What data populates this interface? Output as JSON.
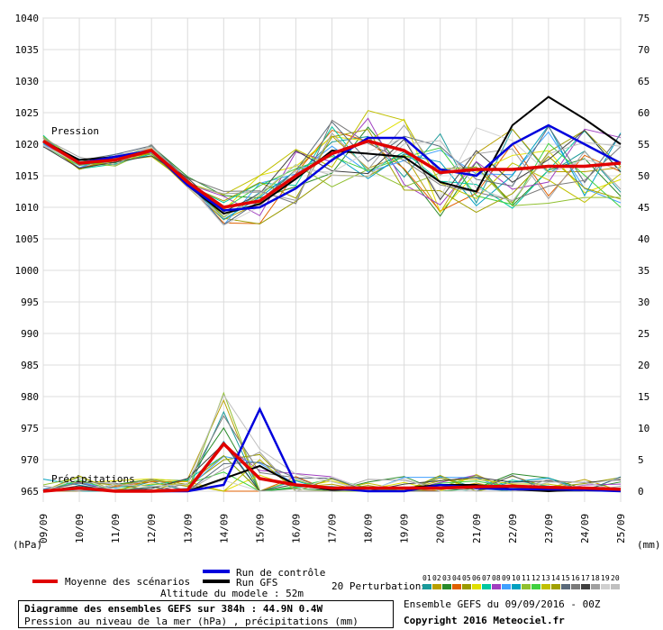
{
  "chart_data": {
    "type": "line",
    "xlabel": "",
    "dates": [
      "09/09",
      "10/09",
      "11/09",
      "12/09",
      "13/09",
      "14/09",
      "15/09",
      "16/09",
      "17/09",
      "18/09",
      "19/09",
      "20/09",
      "21/09",
      "22/09",
      "23/09",
      "24/09",
      "25/09"
    ],
    "left_axis": {
      "unit": "(hPa)",
      "ticks": [
        965,
        970,
        975,
        980,
        985,
        990,
        995,
        1000,
        1005,
        1010,
        1015,
        1020,
        1025,
        1030,
        1035,
        1040
      ]
    },
    "right_axis": {
      "unit": "(mm)",
      "ticks": [
        0,
        5,
        10,
        15,
        20,
        25,
        30,
        35,
        40,
        45,
        50,
        55,
        60,
        65,
        70,
        75
      ]
    },
    "grid": true,
    "panel_labels": {
      "pressure": "Pression",
      "precip": "Précipitations"
    },
    "legend": {
      "mean": "Moyenne des scénarios",
      "control": "Run de contrôle",
      "gfs": "Run GFS",
      "perturbations": "20 Perturbations",
      "perturbation_ids": [
        "01",
        "02",
        "03",
        "04",
        "05",
        "06",
        "07",
        "08",
        "09",
        "10",
        "11",
        "12",
        "13",
        "14",
        "15",
        "16",
        "17",
        "18",
        "19",
        "20"
      ],
      "perturbation_colors": [
        "#1a9a9a",
        "#b8a000",
        "#2a8a2a",
        "#e06000",
        "#9a9a00",
        "#e0e000",
        "#00c8a0",
        "#a040c0",
        "#40a0ff",
        "#00a0c0",
        "#90c030",
        "#40d040",
        "#c0c000",
        "#a0a000",
        "#5a6a7a",
        "#7a7a7a",
        "#404040",
        "#a0a0a0",
        "#d0d0d0",
        "#c0c0c0"
      ]
    },
    "altitude": "Altitude du modele : 52m",
    "pressure_series": [
      {
        "name": "Moyenne des scénarios",
        "color": "#e00000",
        "values": [
          1020.5,
          1017,
          1017.5,
          1019,
          1014,
          1010,
          1011,
          1015,
          1018.5,
          1020.5,
          1019,
          1015.5,
          1016,
          1016,
          1016.5,
          1016.5,
          1017
        ]
      },
      {
        "name": "Run de contrôle",
        "color": "#0000dd",
        "values": [
          1020.5,
          1017,
          1018,
          1019,
          1013.5,
          1009.5,
          1010,
          1013,
          1017.5,
          1021,
          1021,
          1016,
          1015,
          1020,
          1023,
          1020,
          1017
        ]
      },
      {
        "name": "Run GFS",
        "color": "#000000",
        "values": [
          1020.5,
          1017.5,
          1018,
          1019,
          1013.5,
          1009,
          1010.5,
          1014.5,
          1019,
          1018.5,
          1018,
          1014,
          1012.5,
          1023,
          1027.5,
          1024,
          1020
        ]
      }
    ],
    "precip_series": [
      {
        "name": "Moyenne des scénarios",
        "color": "#e00000",
        "values": [
          0,
          0.5,
          0,
          0,
          0.2,
          7.5,
          2,
          1,
          0.5,
          0.5,
          0.5,
          0.5,
          0.7,
          0.8,
          0.6,
          0.5,
          0.3
        ]
      },
      {
        "name": "Run de contrôle",
        "color": "#0000dd",
        "values": [
          0,
          0.5,
          0,
          0,
          0,
          1,
          13,
          1,
          0.5,
          0,
          0,
          1,
          0.5,
          0.3,
          0.3,
          0.2,
          0
        ]
      },
      {
        "name": "Run GFS",
        "color": "#000000",
        "values": [
          0,
          0.5,
          0,
          0,
          0,
          2,
          4,
          1,
          0.2,
          0.5,
          0.5,
          1,
          1,
          0.3,
          0,
          0.3,
          0
        ]
      }
    ]
  },
  "footer": {
    "title": "Diagramme des ensembles GEFS sur 384h : 44.9N 0.4W",
    "subtitle": "Pression au niveau de la mer (hPa) , précipitations (mm)",
    "ensemble": "Ensemble GEFS du 09/09/2016 - 00Z",
    "copyright": "Copyright 2016 Meteociel.fr"
  }
}
